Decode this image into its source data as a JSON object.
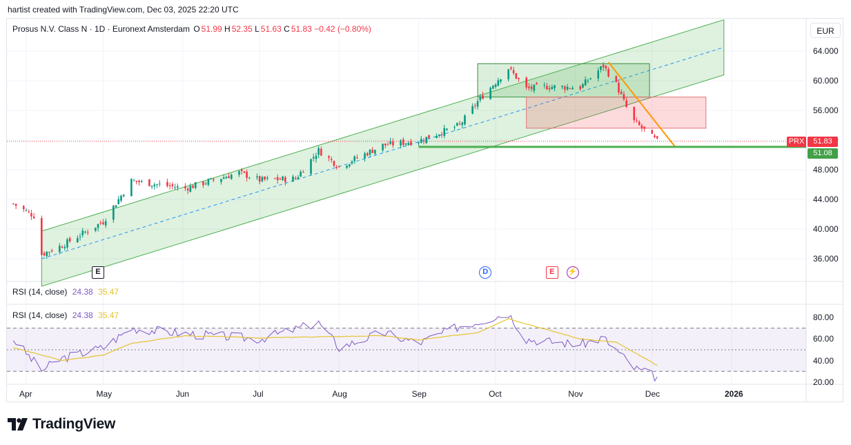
{
  "header": {
    "caption": "hartist created with TradingView.com, Dec 03, 2025 22:20 UTC"
  },
  "legend": {
    "symbol": "Prosus N.V. Class N · 1D · Euronext Amsterdam",
    "open_label": "O",
    "open": "51.99",
    "high_label": "H",
    "high": "52.35",
    "low_label": "L",
    "low": "51.63",
    "close_label": "C",
    "close": "51.83",
    "change": "−0.42 (−0.80%)"
  },
  "currency": "EUR",
  "rsi_legend": {
    "label": "RSI (14, close)",
    "rsi": "24.38",
    "ma": "35.47"
  },
  "price_axis": [
    "64.000",
    "60.000",
    "56.000",
    "52.000",
    "48.000",
    "44.000",
    "40.000",
    "36.000"
  ],
  "rsi_axis": [
    "80.00",
    "60.00",
    "40.00",
    "20.00"
  ],
  "price_tags": {
    "symbol": "PRX",
    "last": "51.83",
    "level": "51.08"
  },
  "time_axis": [
    "Apr",
    "May",
    "Jun",
    "Jul",
    "Aug",
    "Sep",
    "Oct",
    "Nov",
    "Dec",
    "2026"
  ],
  "events": [
    {
      "icon": "earnings-icon",
      "text": "E",
      "color": "#131722"
    },
    {
      "icon": "dividend-icon",
      "text": "D",
      "color": "#2962ff"
    },
    {
      "icon": "earnings-upcoming-icon",
      "text": "E",
      "color": "#f23645"
    },
    {
      "icon": "split-icon",
      "text": "⚡",
      "color": "#9c27b0"
    }
  ],
  "brand": {
    "name": "TradingView"
  },
  "colors": {
    "up": "#089981",
    "down": "#f23645",
    "channel": "#4caf50",
    "midline": "#2196f3",
    "trend": "#ff9800",
    "rsi": "#7e57c2",
    "rsi_ma": "#e6c32c",
    "support": "#4caf50"
  },
  "chart_data": [
    {
      "type": "candlestick",
      "title": "Prosus N.V. Class N · 1D · Euronext Amsterdam",
      "ylim": [
        33.5,
        67.5
      ],
      "series": [
        {
          "name": "Prosus N.V. Class N",
          "x": [
            "2025-03-27",
            "2025-04-04",
            "2025-04-07",
            "2025-04-15",
            "2025-05-01",
            "2025-05-12",
            "2025-06-02",
            "2025-06-23",
            "2025-07-01",
            "2025-07-15",
            "2025-07-24",
            "2025-08-01",
            "2025-08-18",
            "2025-09-01",
            "2025-09-17",
            "2025-09-24",
            "2025-10-06",
            "2025-10-13",
            "2025-10-20",
            "2025-11-03",
            "2025-11-12",
            "2025-11-17",
            "2025-11-21",
            "2025-11-24",
            "2025-12-03"
          ],
          "close": [
            43.4,
            41.8,
            36.6,
            37.8,
            41.0,
            46.5,
            45.5,
            47.6,
            46.6,
            46.8,
            50.6,
            48.4,
            51.3,
            51.9,
            54.0,
            57.2,
            61.7,
            58.9,
            59.2,
            59.1,
            62.0,
            59.5,
            56.4,
            54.5,
            51.83
          ]
        }
      ],
      "annotations": [
        {
          "kind": "parallel channel",
          "from": [
            "2025-04-07",
            36.0
          ],
          "to": [
            "2025-12-29",
            64.5
          ]
        },
        {
          "kind": "rectangle",
          "color": "green",
          "from": [
            "2025-09-24",
            57.8
          ],
          "to": [
            "2025-11-30",
            62.3
          ]
        },
        {
          "kind": "rectangle",
          "color": "red",
          "from": [
            "2025-10-13",
            53.6
          ],
          "to": [
            "2025-12-22",
            57.8
          ]
        },
        {
          "kind": "trend line",
          "from": [
            "2025-11-14",
            62.5
          ],
          "to": [
            "2025-12-10",
            51.08
          ]
        },
        {
          "kind": "horizontal level",
          "value": 51.08,
          "from": "2025-09-01"
        }
      ]
    },
    {
      "type": "line",
      "title": "RSI (14, close)",
      "ylim": [
        18,
        86
      ],
      "bands": [
        30,
        50,
        70
      ],
      "series": [
        {
          "name": "RSI",
          "x": [
            "2025-03-27",
            "2025-04-07",
            "2025-04-15",
            "2025-05-01",
            "2025-05-12",
            "2025-06-02",
            "2025-07-01",
            "2025-07-24",
            "2025-08-01",
            "2025-08-18",
            "2025-09-01",
            "2025-09-17",
            "2025-09-24",
            "2025-10-06",
            "2025-10-13",
            "2025-10-20",
            "2025-11-03",
            "2025-11-12",
            "2025-11-17",
            "2025-11-24",
            "2025-12-03"
          ],
          "values": [
            60,
            31,
            42,
            52,
            70,
            65,
            60,
            75,
            52,
            66,
            56,
            72,
            76,
            84,
            60,
            58,
            55,
            61,
            50,
            33,
            24.38
          ]
        },
        {
          "name": "RSI MA",
          "x": [
            "2025-03-27",
            "2025-04-15",
            "2025-05-01",
            "2025-05-12",
            "2025-06-02",
            "2025-07-01",
            "2025-07-24",
            "2025-08-18",
            "2025-09-01",
            "2025-09-24",
            "2025-10-06",
            "2025-10-13",
            "2025-11-03",
            "2025-11-17",
            "2025-12-03"
          ],
          "values": [
            52,
            40,
            45,
            56,
            63,
            61,
            62,
            63,
            59,
            66,
            79,
            74,
            60,
            57,
            35.47
          ]
        }
      ]
    }
  ]
}
